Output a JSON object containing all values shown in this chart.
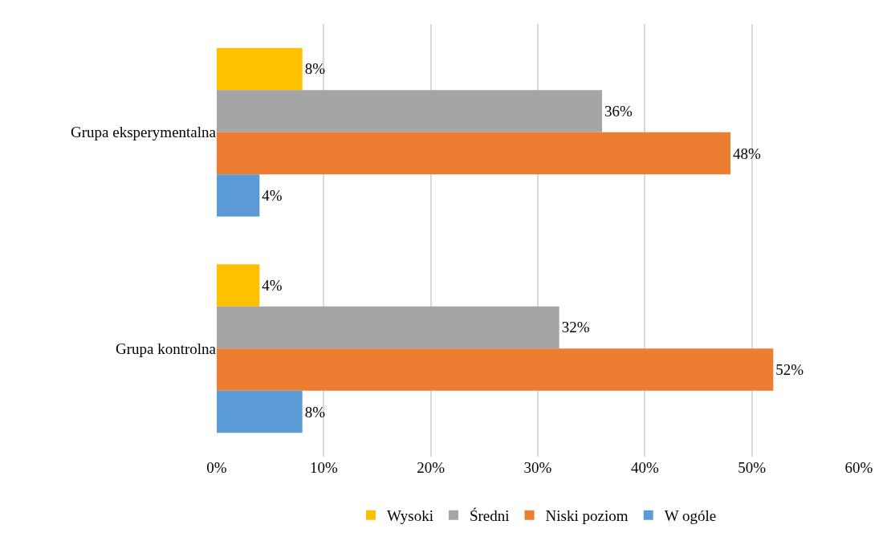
{
  "chart_data": {
    "type": "bar",
    "orientation": "horizontal",
    "categories": [
      "Grupa eksperymentalna",
      "Grupa kontrolna"
    ],
    "series": [
      {
        "name": "Wysoki",
        "color": "#ffc000",
        "values": [
          8,
          4
        ],
        "value_labels": [
          "8%",
          "4%"
        ]
      },
      {
        "name": "Średni",
        "color": "#a5a5a5",
        "values": [
          36,
          32
        ],
        "value_labels": [
          "36%",
          "32%"
        ]
      },
      {
        "name": "Niski poziom",
        "color": "#ed7d31",
        "values": [
          48,
          52
        ],
        "value_labels": [
          "48%",
          "52%"
        ]
      },
      {
        "name": "W ogóle",
        "color": "#5b9bd5",
        "values": [
          4,
          8
        ],
        "value_labels": [
          "4%",
          "8%"
        ]
      }
    ],
    "xlim": [
      0,
      60
    ],
    "xticks": [
      {
        "value": 0,
        "label": "0%"
      },
      {
        "value": 10,
        "label": "10%"
      },
      {
        "value": 20,
        "label": "20%"
      },
      {
        "value": 30,
        "label": "30%"
      },
      {
        "value": 40,
        "label": "40%"
      },
      {
        "value": 50,
        "label": "50%"
      },
      {
        "value": 60,
        "label": "60%"
      }
    ],
    "grid": "x",
    "legend": "bottom"
  }
}
